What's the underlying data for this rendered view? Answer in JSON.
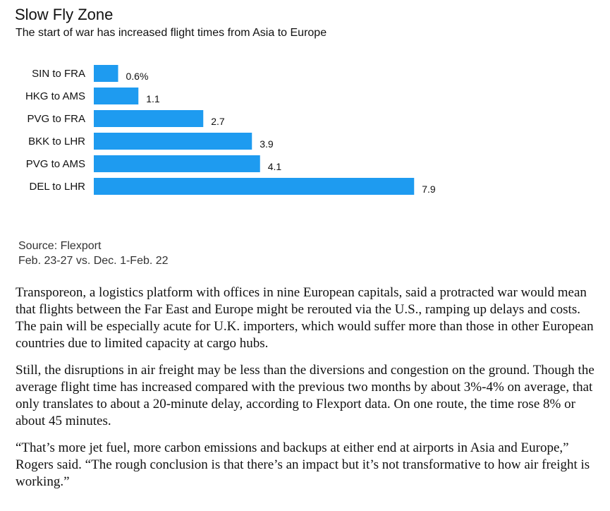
{
  "header": {
    "title": "Slow Fly Zone",
    "subtitle": "The start of war has increased flight times from Asia to Europe"
  },
  "chart_data": {
    "type": "bar",
    "orientation": "horizontal",
    "categories": [
      "SIN to FRA",
      "HKG to AMS",
      "PVG to FRA",
      "BKK to LHR",
      "PVG to AMS",
      "DEL to LHR"
    ],
    "values": [
      0.6,
      1.1,
      2.7,
      3.9,
      4.1,
      7.9
    ],
    "value_labels": [
      "0.6%",
      "1.1",
      "2.7",
      "3.9",
      "4.1",
      "7.9"
    ],
    "title": "Slow Fly Zone",
    "subtitle": "The start of war has increased flight times from Asia to Europe",
    "xlabel": "",
    "ylabel": "",
    "xlim": [
      0,
      8
    ],
    "grid": false,
    "bar_color": "#1e9bf0"
  },
  "footer": {
    "source": "Source: Flexport",
    "note": "Feb. 23-27 vs. Dec. 1-Feb. 22"
  },
  "article": {
    "paragraphs": [
      "Transporeon, a logistics platform with offices in nine European capitals, said a protracted war would mean that flights between the Far East and Europe might be rerouted via the U.S., ramping up delays and costs. The pain will be especially acute for U.K. importers, which would suffer more than those in other European countries due to limited capacity at cargo hubs.",
      "Still, the disruptions in air freight may be less than the diversions and congestion on the ground. Though the average flight time has increased compared with the previous two months by about 3%-4% on average, that only translates to about a 20-minute delay, according to Flexport data. On one route, the time rose 8% or about 45 minutes.",
      "“That’s more jet fuel, more carbon emissions and backups at either end at airports in Asia and Europe,” Rogers said. “The rough conclusion is that there’s an impact but it’s not transformative to how air freight is working.”"
    ]
  }
}
